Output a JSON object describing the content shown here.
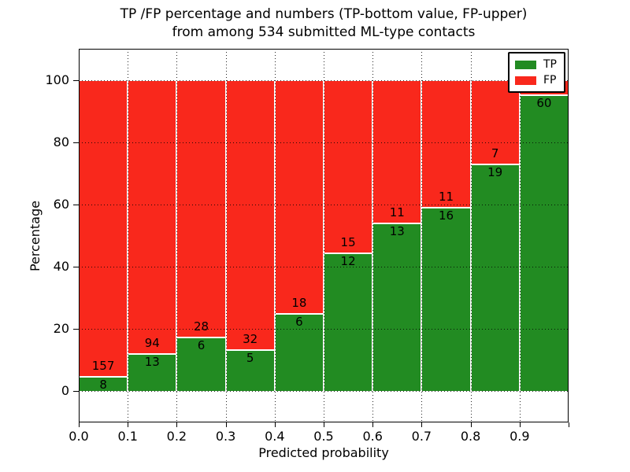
{
  "title": {
    "line1": "TP /FP percentage and numbers (TP-bottom value, FP-upper)",
    "line2": "from among 534 submitted ML-type contacts"
  },
  "axes": {
    "xlabel": "Predicted probability",
    "ylabel": "Percentage",
    "x_ticks": [
      {
        "value": 0.0,
        "label": "0.0"
      },
      {
        "value": 0.1,
        "label": "0.1"
      },
      {
        "value": 0.2,
        "label": "0.2"
      },
      {
        "value": 0.3,
        "label": "0.3"
      },
      {
        "value": 0.4,
        "label": "0.4"
      },
      {
        "value": 0.5,
        "label": "0.5"
      },
      {
        "value": 0.6,
        "label": "0.6"
      },
      {
        "value": 0.7,
        "label": "0.7"
      },
      {
        "value": 0.8,
        "label": "0.8"
      },
      {
        "value": 0.9,
        "label": "0.9"
      },
      {
        "value": 1.0,
        "label": ""
      }
    ],
    "y_ticks": [
      {
        "value": 0,
        "label": "0"
      },
      {
        "value": 20,
        "label": "20"
      },
      {
        "value": 40,
        "label": "40"
      },
      {
        "value": 60,
        "label": "60"
      },
      {
        "value": 80,
        "label": "80"
      },
      {
        "value": 100,
        "label": "100"
      }
    ]
  },
  "legend": {
    "items": [
      {
        "label": "TP",
        "color": "#228b22"
      },
      {
        "label": "FP",
        "color": "#f9281c"
      }
    ]
  },
  "colors": {
    "tp": "#228b22",
    "fp": "#f9281c",
    "grid": "#000000",
    "spine": "#000000",
    "background": "#ffffff",
    "bar_edge": "#ffffff",
    "text": "#000000"
  },
  "chart_data": {
    "type": "bar",
    "stacked": true,
    "normalized_to_percent": true,
    "title": "TP /FP percentage and numbers (TP-bottom value, FP-upper) from among 534 submitted ML-type contacts",
    "xlabel": "Predicted probability",
    "ylabel": "Percentage",
    "xlim": [
      0,
      1.0
    ],
    "ylim": [
      -10,
      110
    ],
    "grid": "dotted",
    "legend_position": "upper right",
    "total_contacts": 534,
    "categories": [
      "0.0-0.1",
      "0.1-0.2",
      "0.2-0.3",
      "0.3-0.4",
      "0.4-0.5",
      "0.5-0.6",
      "0.6-0.7",
      "0.7-0.8",
      "0.8-0.9",
      "0.9-1.0"
    ],
    "series": [
      {
        "name": "TP",
        "color": "#228b22",
        "values": [
          8,
          13,
          6,
          5,
          6,
          12,
          13,
          16,
          19,
          60
        ]
      },
      {
        "name": "FP",
        "color": "#f9281c",
        "values": [
          157,
          94,
          28,
          32,
          18,
          15,
          11,
          11,
          7,
          3
        ]
      }
    ],
    "bars": [
      {
        "x_range": [
          0.0,
          0.1
        ],
        "tp": 8,
        "fp": 157,
        "fp_label_visible": true
      },
      {
        "x_range": [
          0.1,
          0.2
        ],
        "tp": 13,
        "fp": 94,
        "fp_label_visible": true
      },
      {
        "x_range": [
          0.2,
          0.3
        ],
        "tp": 6,
        "fp": 28,
        "fp_label_visible": true
      },
      {
        "x_range": [
          0.3,
          0.4
        ],
        "tp": 5,
        "fp": 32,
        "fp_label_visible": true
      },
      {
        "x_range": [
          0.4,
          0.5
        ],
        "tp": 6,
        "fp": 18,
        "fp_label_visible": true
      },
      {
        "x_range": [
          0.5,
          0.6
        ],
        "tp": 12,
        "fp": 15,
        "fp_label_visible": true
      },
      {
        "x_range": [
          0.6,
          0.7
        ],
        "tp": 13,
        "fp": 11,
        "fp_label_visible": true
      },
      {
        "x_range": [
          0.7,
          0.8
        ],
        "tp": 16,
        "fp": 11,
        "fp_label_visible": true
      },
      {
        "x_range": [
          0.8,
          0.9
        ],
        "tp": 19,
        "fp": 7,
        "fp_label_visible": true
      },
      {
        "x_range": [
          0.9,
          1.0
        ],
        "tp": 60,
        "fp": 3,
        "fp_label_visible": false
      }
    ]
  }
}
